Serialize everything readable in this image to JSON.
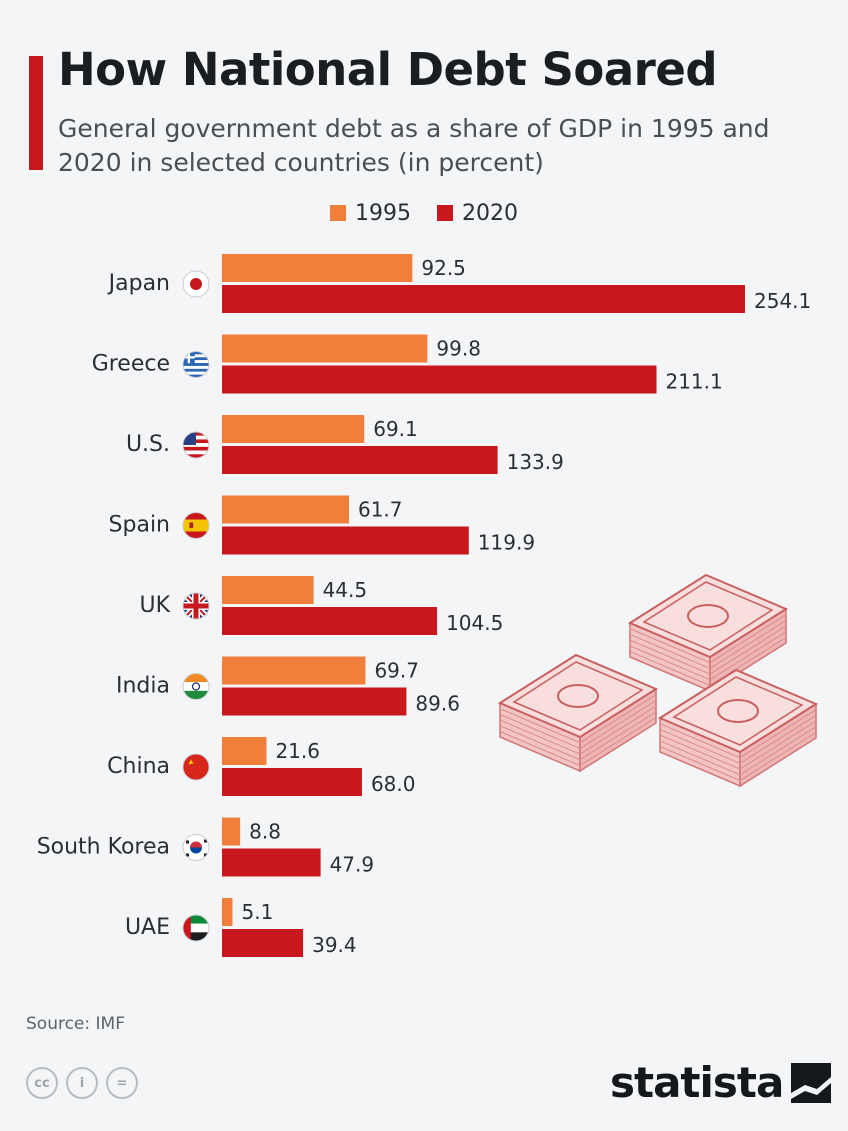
{
  "header": {
    "title": "How National Debt Soared",
    "subtitle": "General government debt as a share of GDP in 1995 and 2020 in selected countries (in percent)"
  },
  "colors": {
    "accent": "#c8171d",
    "series_1995": "#ef7f3a",
    "series_2020": "#c8171d"
  },
  "chart_data": {
    "type": "bar",
    "orientation": "horizontal",
    "categories": [
      "Japan",
      "Greece",
      "U.S.",
      "Spain",
      "UK",
      "India",
      "China",
      "South Korea",
      "UAE"
    ],
    "series": [
      {
        "name": "1995",
        "values": [
          92.5,
          99.8,
          69.1,
          61.7,
          44.5,
          69.7,
          21.6,
          8.8,
          5.1
        ]
      },
      {
        "name": "2020",
        "values": [
          254.1,
          211.1,
          133.9,
          119.9,
          104.5,
          89.6,
          68.0,
          47.9,
          39.4
        ]
      }
    ],
    "value_labels": {
      "1995": [
        "92.5",
        "99.8",
        "69.1",
        "61.7",
        "44.5",
        "69.7",
        "21.6",
        "8.8",
        "5.1"
      ],
      "2020": [
        "254.1",
        "211.1",
        "133.9",
        "119.9",
        "104.5",
        "89.6",
        "68.0",
        "47.9",
        "39.4"
      ]
    },
    "legend_position": "top-center",
    "xlim": [
      0,
      254.1
    ],
    "grid": false,
    "flag_icons": [
      "japan-flag-icon",
      "greece-flag-icon",
      "us-flag-icon",
      "spain-flag-icon",
      "uk-flag-icon",
      "india-flag-icon",
      "china-flag-icon",
      "south-korea-flag-icon",
      "uae-flag-icon"
    ]
  },
  "footer": {
    "source": "Source: IMF",
    "brand": "statista",
    "license_icons": [
      "cc-icon",
      "by-icon",
      "nd-icon"
    ],
    "license_glyphs": [
      "cc",
      "i",
      "="
    ]
  }
}
